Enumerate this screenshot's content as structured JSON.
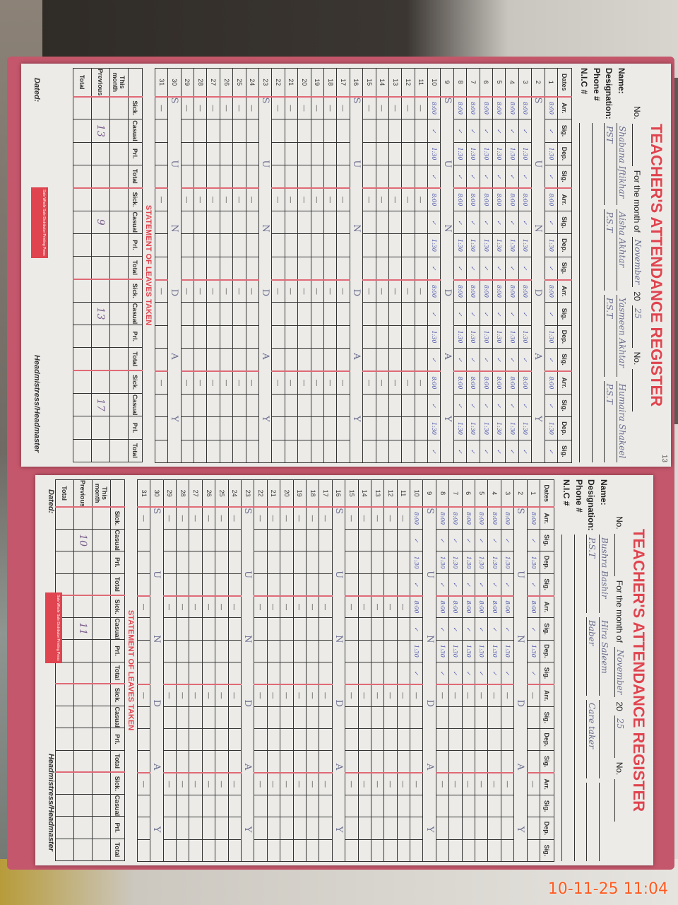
{
  "timestamp": "10-11-25  11:04",
  "colors": {
    "accent": "#e0444f",
    "ink": "#4b56a8",
    "timestamp": "#ff5a1f"
  },
  "pages": [
    {
      "page_mark": "13",
      "title": "TEACHER'S ATTENDANCE REGISTER",
      "no_label": "No.",
      "month_label": "For the month of",
      "month_value": "November",
      "year_prefix": "20",
      "year_value": "25",
      "no2_label": "No.",
      "labels": {
        "name": "Name:",
        "designation": "Designation:",
        "phone": "Phone #",
        "nic": "N.I.C #",
        "dates": "Dates"
      },
      "col_headers": [
        "Arr.",
        "Sig.",
        "Dep.",
        "Sig."
      ],
      "teachers": [
        {
          "name": "Shabana Iftikhar",
          "designation": "PST"
        },
        {
          "name": "Aisha Akhtar",
          "designation": "P.S.T"
        },
        {
          "name": "Yasmeen Akhtar",
          "designation": "P.S.T"
        },
        {
          "name": "Humaira Shakeel",
          "designation": "P.S.T"
        }
      ],
      "sunday_text": "SUNDAY",
      "sundays": [
        2,
        9,
        16,
        23,
        30
      ],
      "filled_through": 10,
      "arr_value": "8:00",
      "dep_value": "1:30",
      "sig_value": "✓",
      "empty_mark": "—",
      "statement_title": "STATEMENT OF LEAVES TAKEN",
      "leave_headers": [
        "Sick.",
        "Casual",
        "Prl.",
        "Total"
      ],
      "leave_rows": [
        {
          "label": "This month",
          "values": [
            "",
            "",
            "",
            "",
            "",
            "",
            "",
            "",
            "",
            "",
            "",
            "",
            "",
            "",
            "",
            ""
          ]
        },
        {
          "label": "Previous",
          "values": [
            "",
            "13",
            "",
            "",
            "",
            "9",
            "",
            "",
            "",
            "13",
            "",
            "",
            "",
            "17",
            "",
            ""
          ]
        },
        {
          "label": "Total",
          "values": [
            "",
            "",
            "",
            "",
            "",
            "",
            "",
            "",
            "",
            "",
            "",
            "",
            "",
            "",
            "",
            ""
          ]
        }
      ],
      "dated_label": "Dated:",
      "sign_label": "Headmistress/Headmaster",
      "stamp_text": "Sale Whole Sale Distributor Printing Press"
    },
    {
      "page_mark": "",
      "title": "TEACHER'S ATTENDANCE REGISTER",
      "no_label": "No.",
      "month_label": "For the month of",
      "month_value": "November",
      "year_prefix": "20",
      "year_value": "25",
      "no2_label": "No.",
      "labels": {
        "name": "Name:",
        "designation": "Designation:",
        "phone": "Phone #",
        "nic": "N.I.C #",
        "dates": "Dates"
      },
      "col_headers": [
        "Arr.",
        "Sig.",
        "Dep.",
        "Sig."
      ],
      "teachers": [
        {
          "name": "Bushra Bashir",
          "designation": "P.S.T"
        },
        {
          "name": "Hira Saleem",
          "designation": "Baber"
        },
        {
          "name": "",
          "designation": "Care taker"
        },
        {
          "name": "",
          "designation": ""
        }
      ],
      "sunday_text": "SUNDAY",
      "sundays": [
        2,
        9,
        16,
        23,
        30
      ],
      "filled_through": 10,
      "arr_value": "8:00",
      "dep_value": "1:30",
      "sig_value": "✓",
      "empty_mark": "—",
      "statement_title": "STATEMENT OF LEAVES TAKEN",
      "leave_headers": [
        "Sick.",
        "Casual",
        "Prl.",
        "Total"
      ],
      "leave_rows": [
        {
          "label": "This month",
          "values": [
            "",
            "",
            "",
            "",
            "",
            "",
            "",
            "",
            "",
            "",
            "",
            "",
            "",
            "",
            "",
            ""
          ]
        },
        {
          "label": "Previous",
          "values": [
            "",
            "10",
            "",
            "",
            "",
            "11",
            "",
            "",
            "",
            "",
            "",
            "",
            "",
            "",
            "",
            ""
          ]
        },
        {
          "label": "Total",
          "values": [
            "",
            "",
            "",
            "",
            "",
            "",
            "",
            "",
            "",
            "",
            "",
            "",
            "",
            "",
            "",
            ""
          ]
        }
      ],
      "dated_label": "Dated:",
      "sign_label": "Headmistress/Headmaster",
      "stamp_text": "Sale Whole Sale Distributor Printing Press"
    }
  ]
}
